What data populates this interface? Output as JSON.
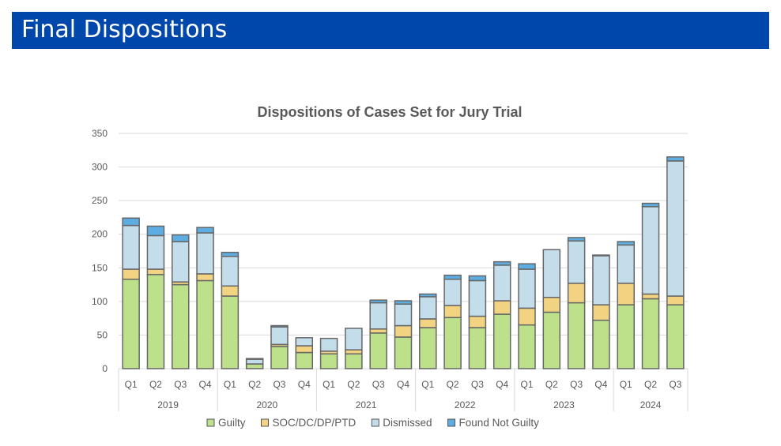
{
  "slide": {
    "title": "Final Dispositions"
  },
  "chart_data": {
    "type": "bar",
    "stacked": true,
    "title": "Dispositions of Cases Set for Jury Trial",
    "xlabel": "",
    "ylabel": "",
    "ylim": [
      0,
      350
    ],
    "yticks": [
      0,
      50,
      100,
      150,
      200,
      250,
      300,
      350
    ],
    "grid": true,
    "legend": "bottom",
    "years": [
      "2019",
      "2020",
      "2021",
      "2022",
      "2023",
      "2024"
    ],
    "categories": [
      "Q1",
      "Q2",
      "Q3",
      "Q4",
      "Q1",
      "Q2",
      "Q3",
      "Q4",
      "Q1",
      "Q2",
      "Q3",
      "Q4",
      "Q1",
      "Q2",
      "Q3",
      "Q4",
      "Q1",
      "Q2",
      "Q3",
      "Q4",
      "Q1",
      "Q2",
      "Q3"
    ],
    "category_years": [
      "2019",
      "2019",
      "2019",
      "2019",
      "2020",
      "2020",
      "2020",
      "2020",
      "2021",
      "2021",
      "2021",
      "2021",
      "2022",
      "2022",
      "2022",
      "2022",
      "2023",
      "2023",
      "2023",
      "2023",
      "2024",
      "2024",
      "2024"
    ],
    "series": [
      {
        "name": "Guilty",
        "color": "#BDE08B",
        "values": [
          133,
          140,
          125,
          131,
          108,
          7,
          33,
          24,
          22,
          22,
          53,
          47,
          61,
          76,
          61,
          81,
          65,
          84,
          98,
          72,
          95,
          104,
          95
        ]
      },
      {
        "name": "SOC/DC/DP/PTD",
        "color": "#F2D382",
        "values": [
          15,
          8,
          4,
          10,
          15,
          0,
          3,
          10,
          4,
          6,
          6,
          17,
          13,
          18,
          17,
          20,
          25,
          22,
          29,
          23,
          32,
          7,
          13
        ]
      },
      {
        "name": "Dismissed",
        "color": "#C3DEEA",
        "values": [
          65,
          50,
          60,
          61,
          44,
          7,
          26,
          12,
          19,
          32,
          39,
          32,
          33,
          39,
          53,
          53,
          58,
          71,
          63,
          73,
          57,
          130,
          201
        ]
      },
      {
        "name": "Found Not Guilty",
        "color": "#5DADE2",
        "values": [
          11,
          14,
          10,
          8,
          6,
          1,
          2,
          0,
          0,
          0,
          4,
          5,
          4,
          6,
          7,
          5,
          8,
          0,
          5,
          1,
          5,
          5,
          6
        ]
      }
    ]
  }
}
